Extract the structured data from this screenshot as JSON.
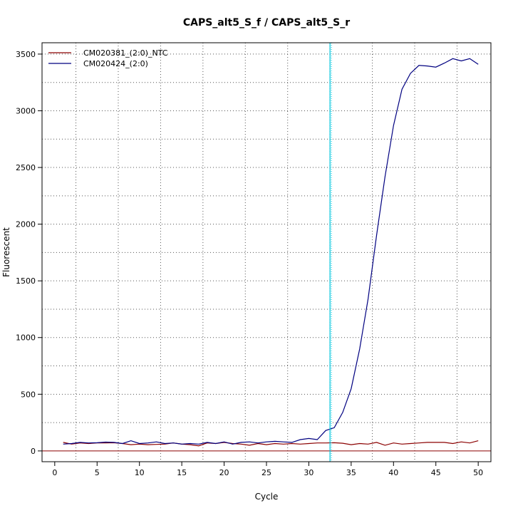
{
  "chart_data": {
    "type": "line",
    "title": "CAPS_alt5_S_f / CAPS_alt5_S_r",
    "xlabel": "Cycle",
    "ylabel": "Fluorescent",
    "xlim": [
      -1.5,
      51.5
    ],
    "ylim": [
      -95,
      3600
    ],
    "xticks": [
      0,
      5,
      10,
      15,
      20,
      25,
      30,
      35,
      40,
      45,
      50
    ],
    "yticks": [
      0,
      500,
      1000,
      1500,
      2000,
      2500,
      3000,
      3500
    ],
    "grid": true,
    "grid_style": "dotted",
    "legend_position": "top-left",
    "threshold_line": {
      "x": 32.5,
      "color": "#00c8e0"
    },
    "baseline": {
      "y": 0,
      "color": "#8b0000"
    },
    "series": [
      {
        "name": "CM020381_(2:0)_NTC",
        "color": "#8b0000",
        "x": [
          1,
          2,
          3,
          4,
          5,
          6,
          7,
          8,
          9,
          10,
          11,
          12,
          13,
          14,
          15,
          16,
          17,
          18,
          19,
          20,
          21,
          22,
          23,
          24,
          25,
          26,
          27,
          28,
          29,
          30,
          31,
          32,
          33,
          34,
          35,
          36,
          37,
          38,
          39,
          40,
          41,
          42,
          43,
          44,
          45,
          46,
          47,
          48,
          49,
          50
        ],
        "y": [
          75,
          60,
          70,
          65,
          70,
          70,
          72,
          65,
          55,
          60,
          55,
          58,
          60,
          70,
          60,
          55,
          45,
          70,
          65,
          75,
          65,
          60,
          50,
          65,
          55,
          65,
          60,
          65,
          60,
          65,
          70,
          70,
          72,
          68,
          55,
          65,
          60,
          75,
          50,
          70,
          60,
          65,
          70,
          75,
          75,
          75,
          65,
          80,
          70,
          90
        ]
      },
      {
        "name": "CM020424_(2:0)",
        "color": "#000080",
        "x": [
          1,
          2,
          3,
          4,
          5,
          6,
          7,
          8,
          9,
          10,
          11,
          12,
          13,
          14,
          15,
          16,
          17,
          18,
          19,
          20,
          21,
          22,
          23,
          24,
          25,
          26,
          27,
          28,
          29,
          30,
          31,
          32,
          33,
          34,
          35,
          36,
          37,
          38,
          39,
          40,
          41,
          42,
          43,
          44,
          45,
          46,
          47,
          48,
          49,
          50
        ],
        "y": [
          60,
          65,
          75,
          70,
          72,
          78,
          75,
          65,
          90,
          65,
          70,
          80,
          65,
          70,
          60,
          65,
          60,
          75,
          65,
          80,
          60,
          75,
          80,
          70,
          80,
          85,
          80,
          75,
          100,
          110,
          100,
          180,
          205,
          340,
          550,
          900,
          1340,
          1900,
          2420,
          2870,
          3190,
          3330,
          3400,
          3395,
          3385,
          3420,
          3460,
          3440,
          3460,
          3410
        ]
      }
    ]
  }
}
